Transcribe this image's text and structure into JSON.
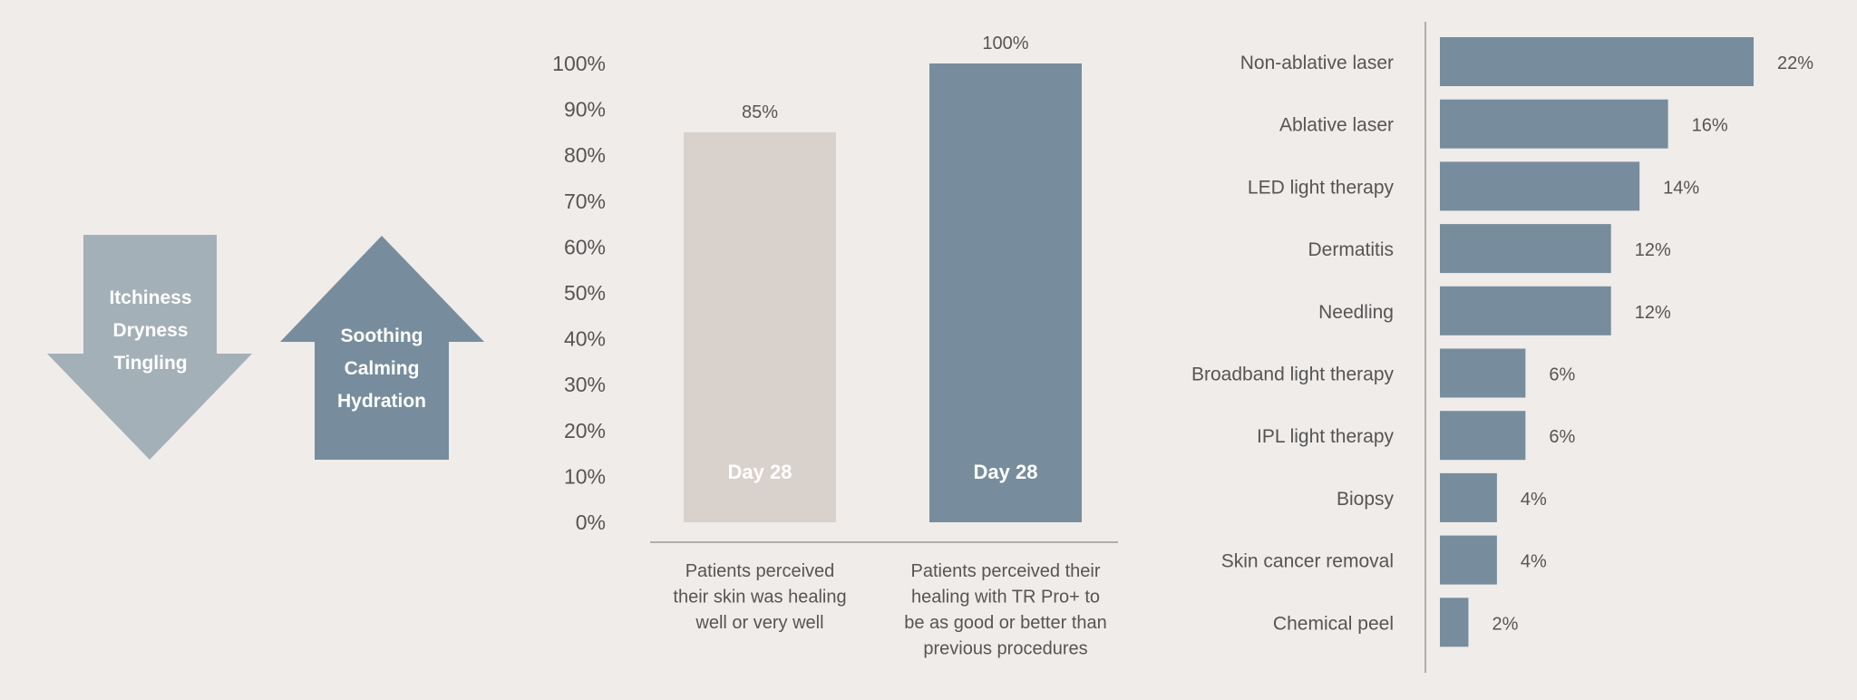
{
  "colors": {
    "background": "#f0ecea",
    "arrow_down": "#a4b0b7",
    "arrow_up": "#778d9d",
    "bar_light": "#d9d1cc",
    "bar_dark": "#778d9d",
    "text": "#555555",
    "axis": "#9a9a9a"
  },
  "arrows": {
    "down": {
      "icon": "arrow-down-icon",
      "lines": [
        "Itchiness",
        "Dryness",
        "Tingling"
      ]
    },
    "up": {
      "icon": "arrow-up-icon",
      "lines": [
        "Soothing",
        "Calming",
        "Hydration"
      ]
    }
  },
  "chart_data": [
    {
      "type": "bar",
      "orientation": "vertical",
      "ylim": [
        0,
        100
      ],
      "yticks": [
        "0%",
        "10%",
        "20%",
        "30%",
        "40%",
        "50%",
        "60%",
        "70%",
        "80%",
        "90%",
        "100%"
      ],
      "bars": [
        {
          "value": 85,
          "value_label": "85%",
          "inner_label": "Day 28",
          "color": "#d9d1cc",
          "caption": [
            "Patients perceived",
            "their skin was healing",
            "well or very well"
          ]
        },
        {
          "value": 100,
          "value_label": "100%",
          "inner_label": "Day 28",
          "color": "#778d9d",
          "caption": [
            "Patients perceived their",
            "healing with TR Pro+ to",
            "be as good or better than",
            "previous procedures"
          ]
        }
      ]
    },
    {
      "type": "bar",
      "orientation": "horizontal",
      "xlim": [
        0,
        22
      ],
      "color": "#778d9d",
      "categories": [
        "Non-ablative laser",
        "Ablative laser",
        "LED light therapy",
        "Dermatitis",
        "Needling",
        "Broadband light therapy",
        "IPL light therapy",
        "Biopsy",
        "Skin cancer removal",
        "Chemical peel"
      ],
      "values": [
        22,
        16,
        14,
        12,
        12,
        6,
        6,
        4,
        4,
        2
      ],
      "value_labels": [
        "22%",
        "16%",
        "14%",
        "12%",
        "12%",
        "6%",
        "6%",
        "4%",
        "4%",
        "2%"
      ]
    }
  ]
}
